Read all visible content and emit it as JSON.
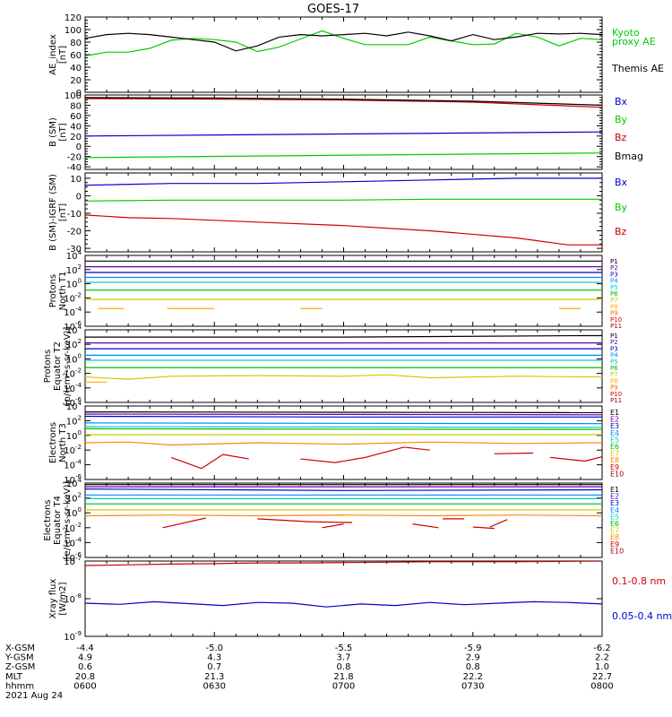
{
  "title": "GOES-17",
  "chart_data": [
    {
      "type": "line",
      "id": "ae",
      "ylabel": [
        "AE_index",
        "[nT]"
      ],
      "ylim": [
        0,
        120
      ],
      "yticks": [
        "0",
        "20",
        "40",
        "60",
        "80",
        "100",
        "120"
      ],
      "series": [
        {
          "name": "Kyoto",
          "name2": "proxy AE",
          "color": "#00cc00",
          "x": [
            0,
            5,
            10,
            15,
            20,
            25,
            30,
            35,
            40,
            45,
            50,
            55,
            60,
            65,
            70,
            75,
            80,
            85,
            90,
            95,
            100,
            105,
            110,
            115,
            120
          ],
          "y": [
            58,
            64,
            64,
            70,
            83,
            86,
            84,
            80,
            65,
            72,
            85,
            98,
            86,
            76,
            76,
            76,
            88,
            82,
            76,
            77,
            94,
            88,
            74,
            86,
            84
          ]
        },
        {
          "name": "Themis AE",
          "color": "#000000",
          "x": [
            0,
            5,
            10,
            15,
            20,
            25,
            30,
            35,
            40,
            45,
            50,
            55,
            60,
            65,
            70,
            75,
            80,
            85,
            90,
            95,
            100,
            105,
            110,
            115,
            120
          ],
          "y": [
            86,
            92,
            94,
            92,
            88,
            84,
            80,
            66,
            74,
            88,
            92,
            90,
            92,
            94,
            90,
            96,
            90,
            82,
            92,
            84,
            88,
            94,
            93,
            94,
            92
          ]
        }
      ]
    },
    {
      "type": "line",
      "id": "bsm",
      "ylabel": [
        "B (SM)",
        "[nT]"
      ],
      "ylim": [
        -45,
        100
      ],
      "yticks": [
        "-40",
        "-20",
        "0",
        "20",
        "40",
        "60",
        "80",
        "100"
      ],
      "series": [
        {
          "name": "Bx",
          "color": "#0000cc",
          "x": [
            0,
            120
          ],
          "y": [
            20,
            28
          ]
        },
        {
          "name": "By",
          "color": "#00cc00",
          "x": [
            0,
            120
          ],
          "y": [
            -22,
            -13
          ]
        },
        {
          "name": "Bz",
          "color": "#cc0000",
          "x": [
            0,
            30,
            60,
            90,
            120
          ],
          "y": [
            93,
            92,
            90,
            86,
            76
          ]
        },
        {
          "name": "Bmag",
          "color": "#000000",
          "x": [
            0,
            30,
            60,
            90,
            120
          ],
          "y": [
            95,
            94,
            92,
            88,
            80
          ]
        }
      ]
    },
    {
      "type": "line",
      "id": "bigrf",
      "ylabel": [
        "B (SM)-IGRF (SM)",
        "[nT]"
      ],
      "ylim": [
        -32,
        13
      ],
      "yticks": [
        "-30",
        "-20",
        "-10",
        "0",
        "10"
      ],
      "series": [
        {
          "name": "Bx",
          "color": "#0000cc",
          "x": [
            0,
            20,
            40,
            60,
            80,
            100,
            120
          ],
          "y": [
            6,
            7,
            7,
            8,
            9,
            10,
            10
          ]
        },
        {
          "name": "By",
          "color": "#00cc00",
          "x": [
            0,
            20,
            40,
            60,
            80,
            100,
            120
          ],
          "y": [
            -3,
            -2.5,
            -2.5,
            -2.5,
            -2,
            -2,
            -2
          ]
        },
        {
          "name": "Bz",
          "color": "#cc0000",
          "x": [
            0,
            10,
            20,
            40,
            60,
            80,
            100,
            112,
            120
          ],
          "y": [
            -11,
            -12.5,
            -13,
            -15,
            -17,
            -20,
            -24,
            -28,
            -28
          ]
        }
      ]
    },
    {
      "type": "line",
      "id": "pn",
      "log": true,
      "ylabel": [
        "Protons",
        "North T1"
      ],
      "ylim": [
        -6,
        4
      ],
      "yticks": [
        "10^-6",
        "10^-4",
        "10^-2",
        "10^0",
        "10^2",
        "10^4"
      ],
      "series": [
        {
          "name": "P1",
          "color": "#000000",
          "x": [
            0,
            120
          ],
          "y": [
            3.2,
            3.2
          ]
        },
        {
          "name": "P2",
          "color": "#6600aa",
          "x": [
            0,
            120
          ],
          "y": [
            2.4,
            2.4
          ]
        },
        {
          "name": "P3",
          "color": "#0000cc",
          "x": [
            0,
            120
          ],
          "y": [
            1.6,
            1.6
          ]
        },
        {
          "name": "P4",
          "color": "#0088ff",
          "x": [
            0,
            120
          ],
          "y": [
            0.9,
            0.9
          ]
        },
        {
          "name": "P5",
          "color": "#00cccc",
          "x": [
            0,
            120
          ],
          "y": [
            0.2,
            0.2
          ]
        },
        {
          "name": "P6",
          "color": "#00bb00",
          "x": [
            0,
            120
          ],
          "y": [
            -0.9,
            -0.9
          ]
        },
        {
          "name": "P7",
          "color": "#cccc00",
          "x": [
            0,
            120
          ],
          "y": [
            -2.2,
            -2.2
          ]
        },
        {
          "name": "P8",
          "color": "#ffaa00",
          "x": [
            3,
            9,
            19,
            30,
            50,
            55,
            110,
            115
          ],
          "y": [
            -3.5,
            -3.5,
            -3.5,
            -3.5,
            -3.5,
            -3.5,
            -3.5,
            -3.5
          ],
          "segments": true
        },
        {
          "name": "P9",
          "color": "#ff6600",
          "x": [],
          "y": []
        },
        {
          "name": "P10",
          "color": "#dd0000",
          "x": [],
          "y": []
        },
        {
          "name": "P11",
          "color": "#990000",
          "x": [],
          "y": []
        }
      ]
    },
    {
      "type": "line",
      "id": "pe",
      "log": true,
      "ylabel": [
        "Protons",
        "Equator T2",
        "[p/(cm²-s-sr-keV)]"
      ],
      "ylim": [
        -6,
        4
      ],
      "yticks": [
        "10^-6",
        "10^-4",
        "10^-2",
        "10^0",
        "10^2",
        "10^4"
      ],
      "series": [
        {
          "name": "P1",
          "color": "#000000",
          "x": [
            0,
            60,
            115,
            120
          ],
          "y": [
            3.0,
            3.0,
            3.2,
            3.2
          ]
        },
        {
          "name": "P2",
          "color": "#6600aa",
          "x": [
            0,
            120
          ],
          "y": [
            2.2,
            2.2
          ]
        },
        {
          "name": "P3",
          "color": "#0000cc",
          "x": [
            0,
            120
          ],
          "y": [
            1.4,
            1.4
          ]
        },
        {
          "name": "P4",
          "color": "#0088ff",
          "x": [
            0,
            120
          ],
          "y": [
            0.5,
            0.5
          ]
        },
        {
          "name": "P5",
          "color": "#00cccc",
          "x": [
            0,
            120
          ],
          "y": [
            -0.2,
            -0.2
          ]
        },
        {
          "name": "P6",
          "color": "#00bb00",
          "x": [
            0,
            120
          ],
          "y": [
            -1.2,
            -1.2
          ]
        },
        {
          "name": "P7",
          "color": "#cccc00",
          "x": [
            0,
            10,
            20,
            40,
            60,
            70,
            80,
            100,
            120
          ],
          "y": [
            -2.5,
            -2.8,
            -2.4,
            -2.3,
            -2.4,
            -2.2,
            -2.6,
            -2.4,
            -2.5
          ]
        },
        {
          "name": "P8",
          "color": "#ffaa00",
          "x": [
            0,
            5
          ],
          "y": [
            -3.2,
            -3.2
          ]
        },
        {
          "name": "P9",
          "color": "#ff6600",
          "x": [],
          "y": []
        },
        {
          "name": "P10",
          "color": "#dd0000",
          "x": [],
          "y": []
        },
        {
          "name": "P11",
          "color": "#990000",
          "x": [],
          "y": []
        }
      ]
    },
    {
      "type": "line",
      "id": "en",
      "log": true,
      "ylabel": [
        "Electrons",
        "North T3"
      ],
      "ylim": [
        -6,
        4
      ],
      "yticks": [
        "10^-6",
        "10^-4",
        "10^-2",
        "10^0",
        "10^2",
        "10^4"
      ],
      "series": [
        {
          "name": "E1",
          "color": "#000000",
          "x": [
            0,
            120
          ],
          "y": [
            3.2,
            3.1
          ]
        },
        {
          "name": "E2",
          "color": "#6600aa",
          "x": [
            0,
            120
          ],
          "y": [
            2.9,
            2.8
          ]
        },
        {
          "name": "E3",
          "color": "#0000cc",
          "x": [
            0,
            60,
            120
          ],
          "y": [
            2.6,
            2.5,
            2.5
          ]
        },
        {
          "name": "E4",
          "color": "#0088ff",
          "x": [
            0,
            120
          ],
          "y": [
            1.7,
            1.6
          ]
        },
        {
          "name": "E5",
          "color": "#00cccc",
          "x": [
            0,
            120
          ],
          "y": [
            1.2,
            1.1
          ]
        },
        {
          "name": "E6",
          "color": "#00bb00",
          "x": [
            0,
            120
          ],
          "y": [
            0.9,
            0.8
          ]
        },
        {
          "name": "E7",
          "color": "#cccc00",
          "x": [
            0,
            120
          ],
          "y": [
            0.1,
            0.1
          ]
        },
        {
          "name": "E8",
          "color": "#ff8800",
          "x": [
            0,
            10,
            20,
            40,
            60,
            80,
            100,
            120
          ],
          "y": [
            -1.0,
            -0.9,
            -1.3,
            -1.0,
            -1.2,
            -0.9,
            -1.1,
            -1.0
          ]
        },
        {
          "name": "E9",
          "color": "#cc0000",
          "segments": true,
          "x": [
            20,
            27,
            27,
            32,
            32,
            38,
            50,
            58,
            58,
            65,
            65,
            74,
            74,
            80,
            95,
            104,
            108,
            116,
            116,
            122
          ],
          "y": [
            -3.0,
            -4.5,
            -4.5,
            -2.6,
            -2.6,
            -3.2,
            -3.2,
            -3.7,
            -3.7,
            -3.0,
            -3.0,
            -1.6,
            -1.6,
            -2.0,
            -2.5,
            -2.4,
            -3.0,
            -3.5,
            -3.5,
            -2.6
          ]
        },
        {
          "name": "E10",
          "color": "#990000",
          "x": [],
          "y": []
        }
      ]
    },
    {
      "type": "line",
      "id": "ee",
      "log": true,
      "ylabel": [
        "Electrons",
        "Equator T4",
        "[e/(cm²-s-sr-keV)]"
      ],
      "ylim": [
        -6,
        4
      ],
      "yticks": [
        "10^-6",
        "10^-4",
        "10^-2",
        "10^0",
        "10^2",
        "10^4"
      ],
      "series": [
        {
          "name": "E1",
          "color": "#000000",
          "x": [
            0,
            120
          ],
          "y": [
            3.8,
            3.8
          ]
        },
        {
          "name": "E2",
          "color": "#6600aa",
          "x": [
            0,
            120
          ],
          "y": [
            3.5,
            3.5
          ]
        },
        {
          "name": "E3",
          "color": "#0000cc",
          "x": [
            0,
            60,
            120
          ],
          "y": [
            3.2,
            3.0,
            3.1
          ]
        },
        {
          "name": "E4",
          "color": "#0088ff",
          "x": [
            0,
            120
          ],
          "y": [
            2.4,
            2.4
          ]
        },
        {
          "name": "E5",
          "color": "#00cccc",
          "x": [
            0,
            120
          ],
          "y": [
            1.9,
            1.9
          ]
        },
        {
          "name": "E6",
          "color": "#00bb00",
          "x": [
            0,
            120
          ],
          "y": [
            1.2,
            1.2
          ]
        },
        {
          "name": "E7",
          "color": "#cccc00",
          "x": [
            0,
            120
          ],
          "y": [
            0.4,
            0.4
          ]
        },
        {
          "name": "E8",
          "color": "#ff8800",
          "x": [
            0,
            20,
            40,
            60,
            80,
            100,
            120
          ],
          "y": [
            -0.4,
            -0.3,
            -0.4,
            -0.3,
            -0.4,
            -0.3,
            -0.4
          ]
        },
        {
          "name": "E9",
          "color": "#cc0000",
          "segments": true,
          "x": [
            18,
            28,
            40,
            52,
            52,
            62,
            55,
            60,
            76,
            82,
            83,
            88,
            90,
            95,
            94,
            98
          ],
          "y": [
            -2.0,
            -0.7,
            -0.8,
            -1.2,
            -1.2,
            -1.3,
            -2.0,
            -1.5,
            -1.5,
            -2.0,
            -0.8,
            -0.8,
            -1.9,
            -2.1,
            -1.9,
            -0.9
          ]
        },
        {
          "name": "E10",
          "color": "#990000",
          "x": [],
          "y": []
        }
      ]
    },
    {
      "type": "line",
      "id": "xray",
      "log": true,
      "ylabel": [
        "Xray flux",
        "[W/m2]"
      ],
      "ylim": [
        -9,
        -7
      ],
      "yticks": [
        "10^-9",
        "10^-8",
        "10^-7"
      ],
      "series": [
        {
          "name": "0.1-0.8 nm",
          "color": "#cc0000",
          "x": [
            0,
            10,
            20,
            30,
            40,
            50,
            60,
            70,
            80,
            90,
            100,
            110,
            120
          ],
          "y": [
            -7.12,
            -7.1,
            -7.08,
            -7.07,
            -7.05,
            -7.05,
            -7.04,
            -7.03,
            -7.02,
            -7.02,
            -7.02,
            -7.01,
            -7.0
          ]
        },
        {
          "name": "0.05-0.4 nm",
          "color": "#0000cc",
          "x": [
            0,
            8,
            16,
            24,
            32,
            40,
            48,
            56,
            64,
            72,
            80,
            88,
            96,
            104,
            112,
            120
          ],
          "y": [
            -8.12,
            -8.15,
            -8.08,
            -8.13,
            -8.18,
            -8.1,
            -8.12,
            -8.22,
            -8.14,
            -8.18,
            -8.1,
            -8.16,
            -8.12,
            -8.08,
            -8.1,
            -8.14
          ]
        }
      ]
    }
  ],
  "x_axis": {
    "ticks_x": [
      0,
      30,
      60,
      90,
      120
    ],
    "rows": [
      {
        "label": "X-GSM",
        "values": [
          "-4.4",
          "-5.0",
          "-5.5",
          "-5.9",
          "-6.2"
        ]
      },
      {
        "label": "Y-GSM",
        "values": [
          "4.9",
          "4.3",
          "3.7",
          "2.9",
          "2.2"
        ]
      },
      {
        "label": "Z-GSM",
        "values": [
          "0.6",
          "0.7",
          "0.8",
          "0.8",
          "1.0"
        ]
      },
      {
        "label": "MLT",
        "values": [
          "20.8",
          "21.3",
          "21.8",
          "22.2",
          "22.7"
        ]
      },
      {
        "label": "hhmm",
        "values": [
          "0600",
          "0630",
          "0700",
          "0730",
          "0800"
        ]
      }
    ],
    "date": "2021 Aug 24"
  }
}
